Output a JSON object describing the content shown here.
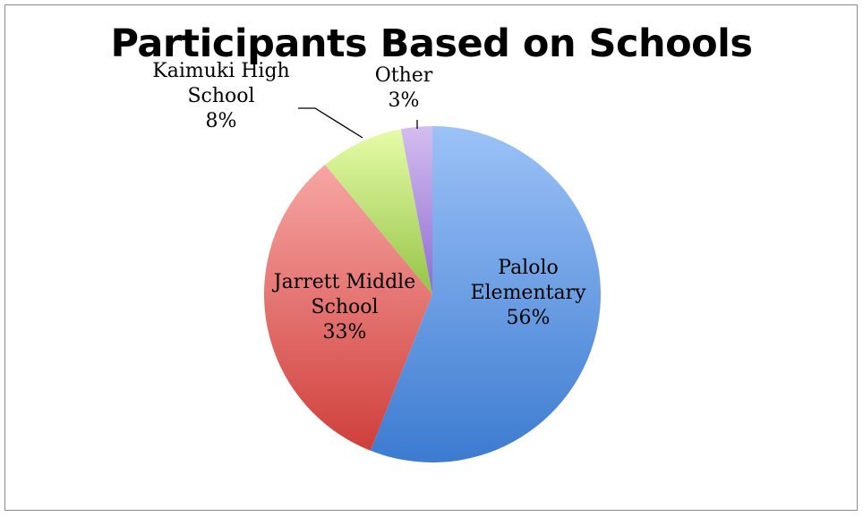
{
  "chart_data": {
    "type": "pie",
    "title": "Participants Based on Schools",
    "slices": [
      {
        "name": "Palolo Elementary",
        "value": 56,
        "label_lines": [
          "Palolo",
          "Elementary",
          "56%"
        ],
        "colors": {
          "light": "#9cc2f7",
          "dark": "#3c7bd0"
        }
      },
      {
        "name": "Jarrett Middle School",
        "value": 33,
        "label_lines": [
          "Jarrett Middle",
          "School",
          "33%"
        ],
        "colors": {
          "light": "#f7a6a4",
          "dark": "#cf3f3b"
        }
      },
      {
        "name": "Kaimuki High School",
        "value": 8,
        "label_lines": [
          "Kaimuki High",
          "School",
          "8%"
        ],
        "colors": {
          "light": "#e6fca8",
          "dark": "#95c447"
        }
      },
      {
        "name": "Other",
        "value": 3,
        "label_lines": [
          "Other",
          "3%"
        ],
        "colors": {
          "light": "#d4bdf0",
          "dark": "#8f6ccf"
        }
      }
    ],
    "legend": "none",
    "data_labels": "category name and percentage"
  }
}
